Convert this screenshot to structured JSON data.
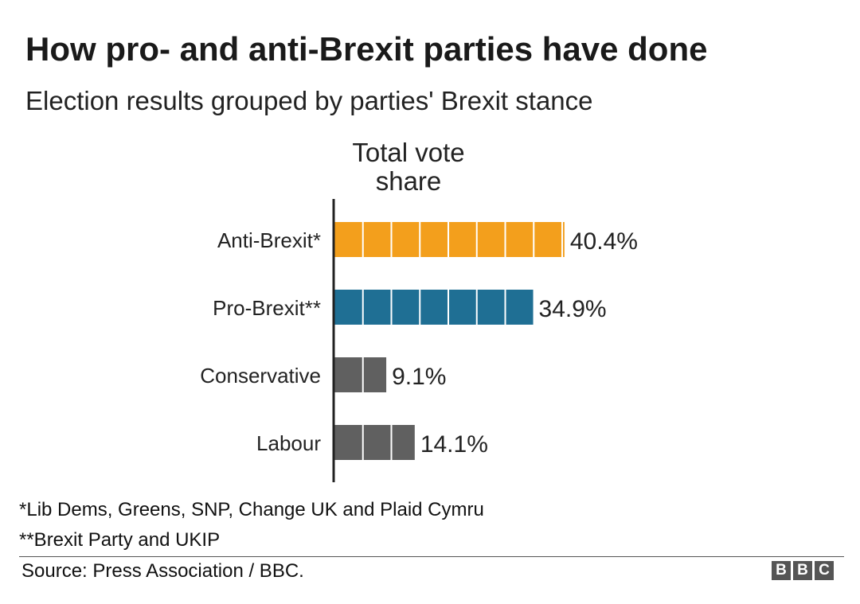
{
  "title": "How pro- and anti-Brexit parties have done",
  "subtitle": "Election results grouped by parties' Brexit stance",
  "chart_data": {
    "type": "bar",
    "orientation": "horizontal",
    "axis_title": "Total vote share",
    "categories": [
      "Anti-Brexit*",
      "Pro-Brexit**",
      "Conservative",
      "Labour"
    ],
    "values": [
      40.4,
      34.9,
      9.1,
      14.1
    ],
    "value_labels": [
      "40.4%",
      "34.9%",
      "9.1%",
      "14.1%"
    ],
    "unit": "%",
    "colors": [
      "#f39f1c",
      "#1f6f94",
      "#606060",
      "#606060"
    ],
    "block_size": 5,
    "grid": false,
    "legend": "none"
  },
  "footnotes": {
    "anti": "*Lib Dems, Greens, SNP, Change UK and Plaid Cymru",
    "pro": "**Brexit Party and UKIP"
  },
  "source": "Source: Press Association / BBC.",
  "logo": [
    "B",
    "B",
    "C"
  ]
}
